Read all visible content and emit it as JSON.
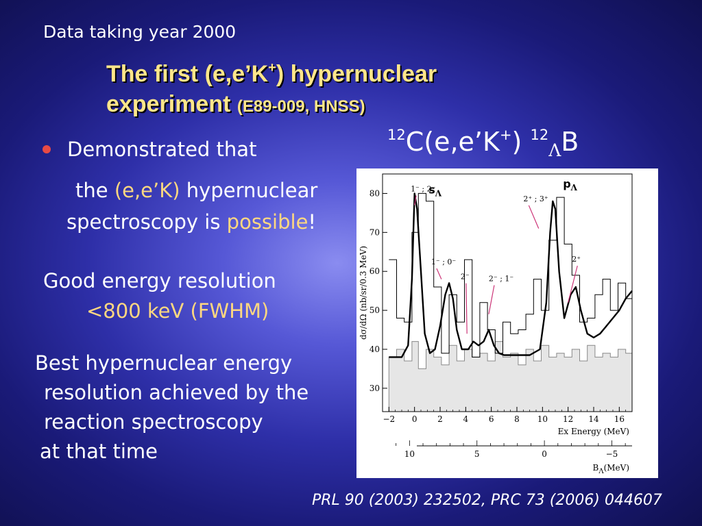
{
  "slide": {
    "header": "Data taking  year 2000",
    "title_line1_pre": "The first (e,e’K",
    "title_sup": "+",
    "title_line1_post": ") hypernuclear",
    "title_line2_main": "experiment ",
    "title_line2_small": "(E89-009, HNSS)",
    "reaction": {
      "a1": "12",
      "base": "C(e,e’K",
      "plus": "+",
      "close": ") ",
      "a2": "12",
      "lambda": "Λ",
      "product": "B"
    },
    "bullet_text": "Demonstrated that",
    "line_the": "the ",
    "line_eek": "(e,e’K)",
    "line_hyper": " hypernuclear",
    "line_spec": "spectroscopy is ",
    "line_possible": "possible",
    "line_excl": "!",
    "good_res": "Good energy resolution",
    "res_value": "<800 keV (FWHM)",
    "best_lines": [
      "Best hypernuclear energy",
      "resolution achieved by the",
      "reaction spectroscopy",
      "at that time"
    ],
    "citation": "PRL 90 (2003) 232502, PRC 73 (2006) 044607",
    "colors": {
      "title": "#ffe68a",
      "highlight": "#ffd880",
      "bullet": "#e84a45"
    }
  },
  "chart_data": {
    "type": "line",
    "xlabel": "Ex Energy (MeV)",
    "ylabel": "dσ/dΩ (nb/sr/0.3 MeV)",
    "xlim": [
      -2.5,
      17
    ],
    "ylim": [
      24,
      85
    ],
    "x_ticks": [
      -2,
      0,
      2,
      4,
      6,
      8,
      10,
      12,
      14,
      16
    ],
    "x_tick_labels": [
      "−2",
      "0",
      "2",
      "4",
      "6",
      "8",
      "10",
      "12",
      "14",
      "16"
    ],
    "y_ticks": [
      30,
      40,
      50,
      60,
      70,
      80
    ],
    "y_tick_labels": [
      "30",
      "40",
      "50",
      "60",
      "70",
      "80"
    ],
    "secondary_axis": {
      "xlabel": "B",
      "xlabel_sub": "Λ",
      "xlabel_post": "(MeV)",
      "ticks": [
        10,
        5,
        0,
        -5
      ],
      "tick_labels": [
        "10",
        "5",
        "0",
        "−5"
      ],
      "xlim": [
        12,
        -6.5
      ]
    },
    "peak_labels": [
      {
        "text": "s",
        "sub": "Λ",
        "x": 1.1,
        "y": 80
      },
      {
        "text": "p",
        "sub": "Λ",
        "x": 11.6,
        "y": 81.5
      }
    ],
    "state_labels": [
      {
        "text": "1⁻ ; 2⁻",
        "x": -0.3,
        "y": 80.5,
        "tx": 0.0,
        "ty": 77
      },
      {
        "text": "1⁻ ; 0⁻",
        "x": 1.3,
        "y": 61.8,
        "tx": 2.1,
        "ty": 58
      },
      {
        "text": "2⁻",
        "x": 3.6,
        "y": 58,
        "tx": 4.1,
        "ty": 44
      },
      {
        "text": "2⁻ ; 1⁻",
        "x": 5.8,
        "y": 57.5,
        "tx": 5.8,
        "ty": 49
      },
      {
        "text": "2⁺ ; 3⁺",
        "x": 8.5,
        "y": 78,
        "tx": 9.7,
        "ty": 71
      },
      {
        "text": "2⁺",
        "x": 12.3,
        "y": 62.5,
        "tx": 12.0,
        "ty": 52
      }
    ],
    "series": [
      {
        "style": "fit",
        "x": [
          -2.0,
          -1.0,
          -0.5,
          -0.2,
          0.0,
          0.2,
          0.5,
          0.8,
          1.2,
          1.6,
          2.0,
          2.4,
          2.7,
          3.0,
          3.3,
          3.7,
          4.2,
          4.6,
          5.0,
          5.4,
          5.8,
          6.2,
          6.6,
          7.0,
          8.0,
          9.0,
          9.8,
          10.3,
          10.6,
          10.8,
          11.0,
          11.3,
          11.7,
          12.2,
          12.6,
          13.0,
          13.5,
          14.0,
          14.5,
          15.0,
          15.5,
          16.0,
          16.5,
          17.0
        ],
        "y": [
          38,
          38,
          41,
          58,
          80,
          76,
          60,
          44,
          39,
          40,
          46,
          54,
          57,
          53,
          45,
          40,
          40,
          42,
          41,
          42,
          45,
          41,
          39,
          38.5,
          38.5,
          38.5,
          40,
          52,
          70,
          78,
          76,
          60,
          48,
          54,
          56,
          50,
          44,
          43,
          44,
          46,
          48,
          50,
          53,
          55
        ]
      },
      {
        "style": "histogram",
        "x": [
          -2.0,
          -1.4,
          -0.8,
          -0.2,
          0.3,
          0.9,
          1.5,
          2.1,
          2.7,
          3.3,
          3.9,
          4.5,
          5.1,
          5.7,
          6.3,
          6.9,
          7.5,
          8.1,
          8.7,
          9.3,
          9.9,
          10.5,
          11.1,
          11.7,
          12.3,
          12.9,
          13.5,
          14.1,
          14.7,
          15.3,
          15.9,
          16.5
        ],
        "y": [
          63,
          48,
          47,
          70,
          80,
          78,
          56,
          39,
          54,
          47,
          63,
          38,
          52,
          45,
          39,
          47,
          44,
          45,
          49,
          58,
          50,
          68,
          79,
          67,
          59,
          47,
          48,
          54,
          58,
          50,
          57,
          53
        ]
      },
      {
        "style": "background",
        "x": [
          -2.0,
          -1.4,
          -0.8,
          -0.2,
          0.3,
          0.9,
          1.5,
          2.1,
          2.7,
          3.3,
          3.9,
          4.5,
          5.1,
          5.7,
          6.3,
          6.9,
          7.5,
          8.1,
          8.7,
          9.3,
          9.9,
          10.5,
          11.1,
          11.7,
          12.3,
          12.9,
          13.5,
          14.1,
          14.7,
          15.3,
          15.9,
          16.5
        ],
        "y": [
          38,
          40,
          37,
          42,
          35,
          40,
          38,
          36,
          41,
          37,
          40,
          38,
          39,
          37,
          42,
          38,
          39,
          36,
          40,
          37,
          41,
          38,
          39,
          38,
          40,
          37,
          41,
          38,
          39,
          38,
          40,
          39
        ]
      }
    ]
  }
}
